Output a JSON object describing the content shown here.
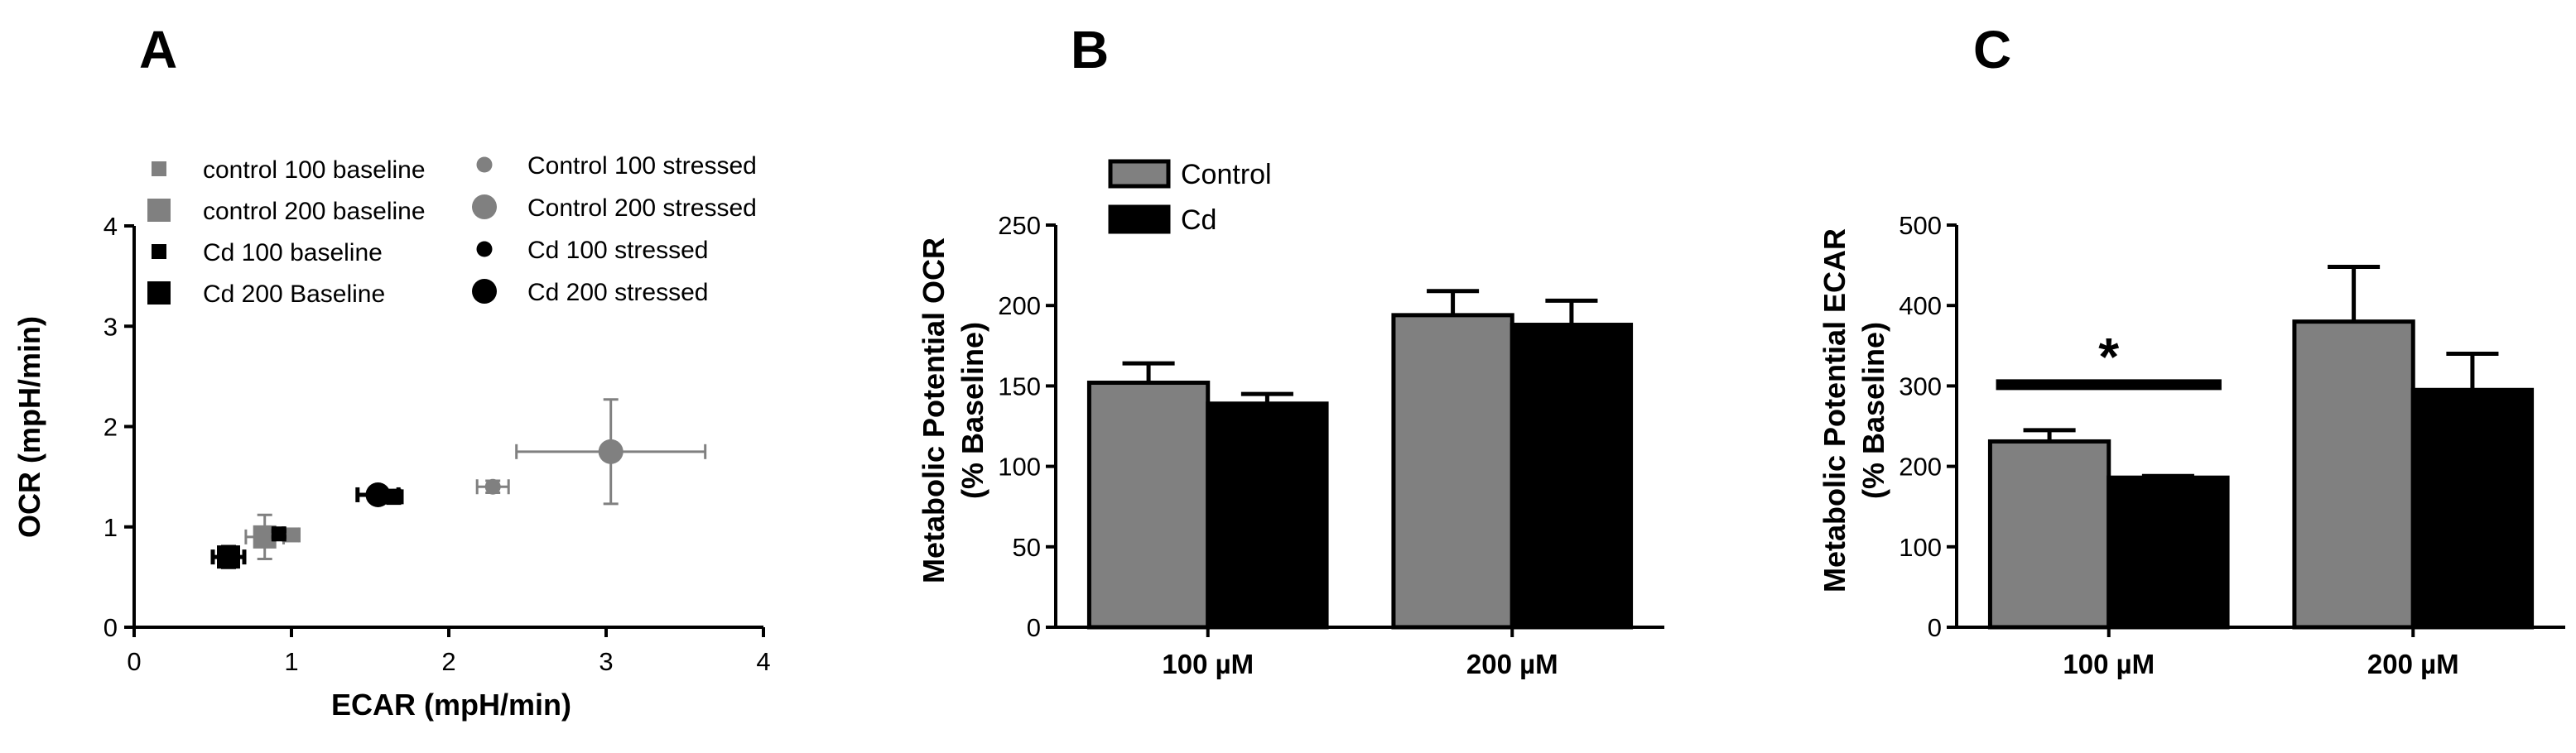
{
  "colors": {
    "control": "#808080",
    "cd": "#000000",
    "axis": "#000000"
  },
  "panels": {
    "A": {
      "letter": "A"
    },
    "B": {
      "letter": "B"
    },
    "C": {
      "letter": "C"
    }
  },
  "chart_data": [
    {
      "panel": "A",
      "type": "scatter",
      "xlabel": "ECAR (mpH/min)",
      "ylabel": "OCR (mpH/min)",
      "xlim": [
        0,
        4
      ],
      "ylim": [
        0,
        4
      ],
      "xticks": [
        0,
        1,
        2,
        3,
        4
      ],
      "yticks": [
        0,
        1,
        2,
        3,
        4
      ],
      "series": [
        {
          "name": "control 100 baseline",
          "marker": "square",
          "size": "small",
          "color": "#808080",
          "x": 1.0,
          "y": 0.92,
          "xerr": 0.05,
          "yerr": 0.05
        },
        {
          "name": "control 200 baseline",
          "marker": "square",
          "size": "large",
          "color": "#808080",
          "x": 0.83,
          "y": 0.9,
          "xerr": 0.12,
          "yerr": 0.22
        },
        {
          "name": "Cd 100 baseline",
          "marker": "square",
          "size": "small",
          "color": "#000000",
          "x": 0.92,
          "y": 0.93,
          "xerr": 0.03,
          "yerr": 0.03
        },
        {
          "name": "Cd 200 Baseline",
          "marker": "square",
          "size": "large",
          "color": "#000000",
          "x": 0.6,
          "y": 0.7,
          "xerr": 0.1,
          "yerr": 0.1
        },
        {
          "name": "Control 100 stressed",
          "marker": "circle",
          "size": "small",
          "color": "#808080",
          "x": 2.28,
          "y": 1.4,
          "xerr": 0.1,
          "yerr": 0.06
        },
        {
          "name": "Control 200 stressed",
          "marker": "circle",
          "size": "large",
          "color": "#808080",
          "x": 3.03,
          "y": 1.75,
          "xerr": 0.6,
          "yerr": 0.52
        },
        {
          "name": "Cd 100 stressed",
          "marker": "circle",
          "size": "small",
          "color": "#000000",
          "x": 1.65,
          "y": 1.3,
          "xerr": 0.05,
          "yerr": 0.06
        },
        {
          "name": "Cd 200 stressed",
          "marker": "circle",
          "size": "large",
          "color": "#000000",
          "x": 1.55,
          "y": 1.32,
          "xerr": 0.13,
          "yerr": 0.06
        }
      ]
    },
    {
      "panel": "B",
      "type": "bar",
      "ylabel_line1": "Metabolic Potential OCR",
      "ylabel_line2": "(% Baseline)",
      "categories": [
        "100 µM",
        "200 µM"
      ],
      "ylim": [
        0,
        250
      ],
      "yticks": [
        0,
        50,
        100,
        150,
        200,
        250
      ],
      "series": [
        {
          "name": "Control",
          "color": "#808080",
          "values": [
            152,
            194
          ],
          "errors": [
            12,
            15
          ]
        },
        {
          "name": "Cd",
          "color": "#000000",
          "values": [
            139,
            188
          ],
          "errors": [
            6,
            15
          ]
        }
      ]
    },
    {
      "panel": "C",
      "type": "bar",
      "ylabel_line1": "Metabolic Potential ECAR",
      "ylabel_line2": "(% Baseline)",
      "categories": [
        "100 µM",
        "200 µM"
      ],
      "ylim": [
        0,
        500
      ],
      "yticks": [
        0,
        100,
        200,
        300,
        400,
        500
      ],
      "series": [
        {
          "name": "Control",
          "color": "#808080",
          "values": [
            231,
            380
          ],
          "errors": [
            14,
            68
          ]
        },
        {
          "name": "Cd",
          "color": "#000000",
          "values": [
            186,
            295
          ],
          "errors": [
            2,
            45
          ]
        }
      ],
      "annotations": [
        {
          "text": "*",
          "category": "100 µM"
        }
      ]
    }
  ]
}
